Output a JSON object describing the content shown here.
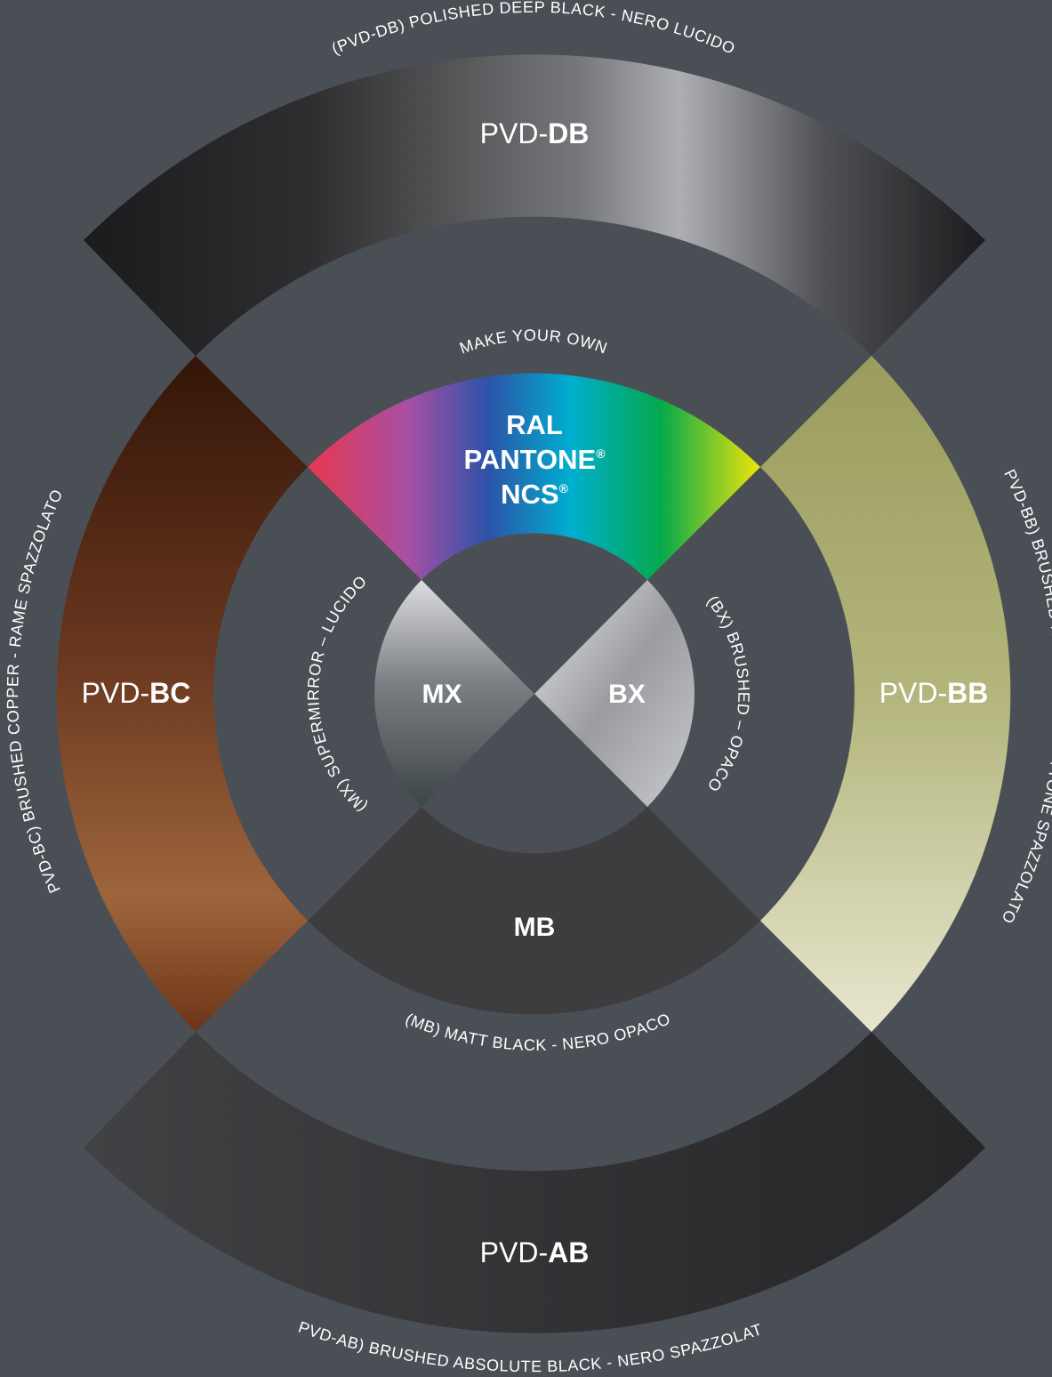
{
  "finishes": {
    "db": {
      "prefix": "PVD-",
      "bold": "DB",
      "caption": "(PVD-DB) POLISHED DEEP BLACK - NERO LUCIDO"
    },
    "bb": {
      "prefix": "PVD-",
      "bold": "BB",
      "caption": "(PVD-BB) BRUSHED HIGH BRASS - OTTONE SPAZZOLATO"
    },
    "ab": {
      "prefix": "PVD-",
      "bold": "AB",
      "caption": "(PVD-AB) BRUSHED ABSOLUTE BLACK - NERO SPAZZOLATO"
    },
    "bc": {
      "prefix": "PVD-",
      "bold": "BC",
      "caption": "(PVD-BC) BRUSHED COPPER - RAME SPAZZOLATO"
    },
    "custom": {
      "caption": "MAKE YOUR OWN",
      "line1": "RAL",
      "line2": "PANTONE",
      "line3": "NCS",
      "reg": "®"
    },
    "mb": {
      "label": "MB",
      "caption": "(MB) MATT BLACK - NERO OPACO"
    },
    "mx": {
      "label": "MX",
      "caption": "(MX) SUPERMIRROR – LUCIDO"
    },
    "bx": {
      "label": "BX",
      "caption": "(BX) BRUSHED – OPACO"
    }
  },
  "colors": {
    "background": "#4a4f55",
    "deep_black": [
      "#1c1c1e",
      "#3a3a3c",
      "#6e6f72",
      "#a7a9ad",
      "#1d1d1f"
    ],
    "high_brass": [
      "#9a9c5c",
      "#b5b77f",
      "#e6e5cc"
    ],
    "absolute_black": [
      "#3f3f42",
      "#2a2a2c"
    ],
    "copper": [
      "#351608",
      "#6e3a1f",
      "#a5693f"
    ],
    "matt_black": "#3d3d3f",
    "spectrum": [
      "#e8384f",
      "#a84fa3",
      "#2c53a8",
      "#00aed0",
      "#04a94c",
      "#f1e40a"
    ]
  }
}
